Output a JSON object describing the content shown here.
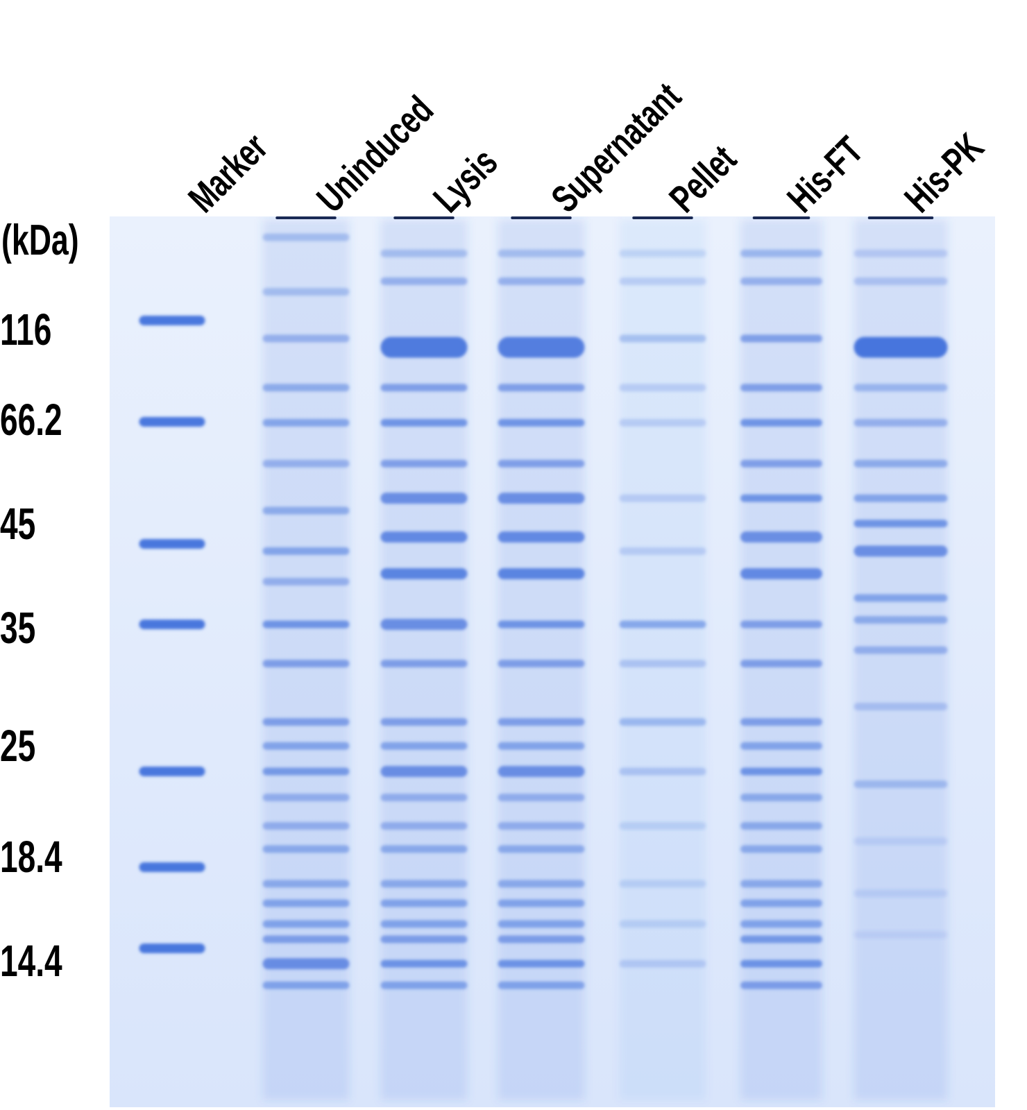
{
  "unit_label": "(kDa)",
  "lanes": [
    {
      "label": "Marker",
      "bands": []
    },
    {
      "label": "Uninduced",
      "bands": [
        {
          "mw": 200,
          "i": 0.35
        },
        {
          "mw": 140,
          "i": 0.35
        },
        {
          "mw": 105,
          "i": 0.45
        },
        {
          "mw": 80,
          "i": 0.5
        },
        {
          "mw": 66,
          "i": 0.55
        },
        {
          "mw": 58,
          "i": 0.45
        },
        {
          "mw": 50,
          "i": 0.5
        },
        {
          "mw": 44,
          "i": 0.55
        },
        {
          "mw": 40,
          "i": 0.45
        },
        {
          "mw": 35,
          "i": 0.7
        },
        {
          "mw": 32,
          "i": 0.6
        },
        {
          "mw": 28,
          "i": 0.6
        },
        {
          "mw": 26.5,
          "i": 0.55
        },
        {
          "mw": 25,
          "i": 0.65
        },
        {
          "mw": 23,
          "i": 0.45
        },
        {
          "mw": 21,
          "i": 0.45
        },
        {
          "mw": 19.5,
          "i": 0.5
        },
        {
          "mw": 17.5,
          "i": 0.5
        },
        {
          "mw": 16.5,
          "i": 0.55
        },
        {
          "mw": 15.5,
          "i": 0.55
        },
        {
          "mw": 14.8,
          "i": 0.6
        },
        {
          "mw": 13.8,
          "i": 0.75
        },
        {
          "mw": 13,
          "i": 0.55
        }
      ]
    },
    {
      "label": "Lysis",
      "bands": [
        {
          "mw": 180,
          "i": 0.35
        },
        {
          "mw": 150,
          "i": 0.45
        },
        {
          "mw": 100,
          "i": 0.95
        },
        {
          "mw": 80,
          "i": 0.6
        },
        {
          "mw": 66,
          "i": 0.7
        },
        {
          "mw": 58,
          "i": 0.6
        },
        {
          "mw": 52,
          "i": 0.75
        },
        {
          "mw": 46,
          "i": 0.8
        },
        {
          "mw": 41,
          "i": 0.85
        },
        {
          "mw": 35,
          "i": 0.75
        },
        {
          "mw": 32,
          "i": 0.6
        },
        {
          "mw": 28,
          "i": 0.6
        },
        {
          "mw": 26.5,
          "i": 0.55
        },
        {
          "mw": 25,
          "i": 0.75
        },
        {
          "mw": 23,
          "i": 0.45
        },
        {
          "mw": 21,
          "i": 0.45
        },
        {
          "mw": 19.5,
          "i": 0.5
        },
        {
          "mw": 17.5,
          "i": 0.5
        },
        {
          "mw": 16.5,
          "i": 0.55
        },
        {
          "mw": 15.5,
          "i": 0.55
        },
        {
          "mw": 14.8,
          "i": 0.6
        },
        {
          "mw": 13.8,
          "i": 0.7
        },
        {
          "mw": 13,
          "i": 0.55
        }
      ]
    },
    {
      "label": "Supernatant",
      "bands": [
        {
          "mw": 180,
          "i": 0.35
        },
        {
          "mw": 150,
          "i": 0.45
        },
        {
          "mw": 100,
          "i": 0.92
        },
        {
          "mw": 80,
          "i": 0.6
        },
        {
          "mw": 66,
          "i": 0.7
        },
        {
          "mw": 58,
          "i": 0.6
        },
        {
          "mw": 52,
          "i": 0.75
        },
        {
          "mw": 46,
          "i": 0.8
        },
        {
          "mw": 41,
          "i": 0.85
        },
        {
          "mw": 35,
          "i": 0.7
        },
        {
          "mw": 32,
          "i": 0.6
        },
        {
          "mw": 28,
          "i": 0.6
        },
        {
          "mw": 26.5,
          "i": 0.55
        },
        {
          "mw": 25,
          "i": 0.75
        },
        {
          "mw": 23,
          "i": 0.45
        },
        {
          "mw": 21,
          "i": 0.45
        },
        {
          "mw": 19.5,
          "i": 0.5
        },
        {
          "mw": 17.5,
          "i": 0.5
        },
        {
          "mw": 16.5,
          "i": 0.55
        },
        {
          "mw": 15.5,
          "i": 0.55
        },
        {
          "mw": 14.8,
          "i": 0.6
        },
        {
          "mw": 13.8,
          "i": 0.7
        },
        {
          "mw": 13,
          "i": 0.55
        }
      ]
    },
    {
      "label": "Pellet",
      "bands": [
        {
          "mw": 180,
          "i": 0.2
        },
        {
          "mw": 150,
          "i": 0.25
        },
        {
          "mw": 105,
          "i": 0.35
        },
        {
          "mw": 80,
          "i": 0.25
        },
        {
          "mw": 66,
          "i": 0.25
        },
        {
          "mw": 52,
          "i": 0.25
        },
        {
          "mw": 44,
          "i": 0.25
        },
        {
          "mw": 35,
          "i": 0.55
        },
        {
          "mw": 32,
          "i": 0.3
        },
        {
          "mw": 28,
          "i": 0.4
        },
        {
          "mw": 25,
          "i": 0.3
        },
        {
          "mw": 21,
          "i": 0.2
        },
        {
          "mw": 17.5,
          "i": 0.2
        },
        {
          "mw": 15.5,
          "i": 0.2
        },
        {
          "mw": 13.8,
          "i": 0.25
        }
      ]
    },
    {
      "label": "His-FT",
      "bands": [
        {
          "mw": 180,
          "i": 0.4
        },
        {
          "mw": 150,
          "i": 0.45
        },
        {
          "mw": 105,
          "i": 0.6
        },
        {
          "mw": 80,
          "i": 0.6
        },
        {
          "mw": 66,
          "i": 0.7
        },
        {
          "mw": 58,
          "i": 0.6
        },
        {
          "mw": 52,
          "i": 0.7
        },
        {
          "mw": 46,
          "i": 0.75
        },
        {
          "mw": 41,
          "i": 0.8
        },
        {
          "mw": 35,
          "i": 0.6
        },
        {
          "mw": 32,
          "i": 0.6
        },
        {
          "mw": 28,
          "i": 0.6
        },
        {
          "mw": 26.5,
          "i": 0.55
        },
        {
          "mw": 25,
          "i": 0.7
        },
        {
          "mw": 23,
          "i": 0.5
        },
        {
          "mw": 21,
          "i": 0.5
        },
        {
          "mw": 19.5,
          "i": 0.5
        },
        {
          "mw": 17.5,
          "i": 0.5
        },
        {
          "mw": 16.5,
          "i": 0.55
        },
        {
          "mw": 15.5,
          "i": 0.55
        },
        {
          "mw": 14.8,
          "i": 0.65
        },
        {
          "mw": 13.8,
          "i": 0.7
        },
        {
          "mw": 13,
          "i": 0.6
        }
      ]
    },
    {
      "label": "His-PK",
      "bands": [
        {
          "mw": 180,
          "i": 0.25
        },
        {
          "mw": 150,
          "i": 0.3
        },
        {
          "mw": 100,
          "i": 1.0
        },
        {
          "mw": 80,
          "i": 0.4
        },
        {
          "mw": 66,
          "i": 0.45
        },
        {
          "mw": 58,
          "i": 0.5
        },
        {
          "mw": 52,
          "i": 0.55
        },
        {
          "mw": 48,
          "i": 0.7
        },
        {
          "mw": 44,
          "i": 0.75
        },
        {
          "mw": 38,
          "i": 0.55
        },
        {
          "mw": 35.5,
          "i": 0.5
        },
        {
          "mw": 33,
          "i": 0.45
        },
        {
          "mw": 29,
          "i": 0.3
        },
        {
          "mw": 24,
          "i": 0.35
        },
        {
          "mw": 20,
          "i": 0.15
        },
        {
          "mw": 17,
          "i": 0.15
        },
        {
          "mw": 15,
          "i": 0.12
        }
      ]
    }
  ],
  "marker_kda": [
    "116",
    "66.2",
    "45",
    "35",
    "25",
    "18.4",
    "14.4"
  ],
  "colors": {
    "gel_background": "#dde8fb",
    "band": "#2f63d8",
    "label_text": "#000000"
  }
}
